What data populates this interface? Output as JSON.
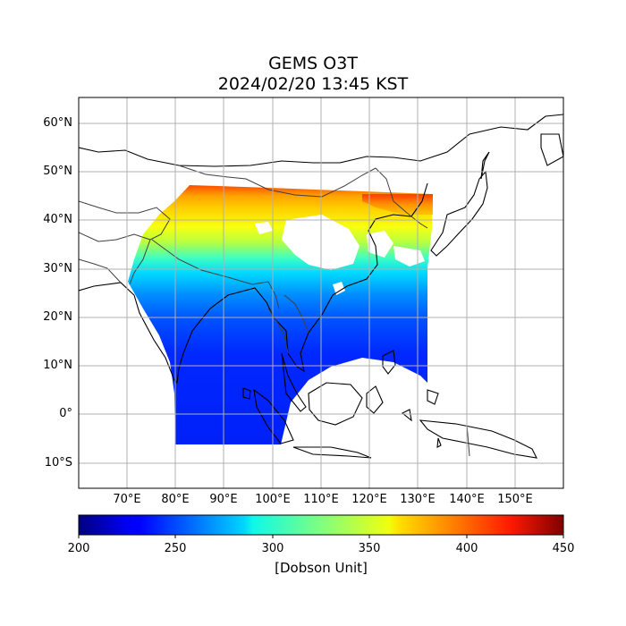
{
  "title_line1": "GEMS O3T",
  "title_line2": "2024/02/20 13:45 KST",
  "lat_labels": [
    "60°N",
    "50°N",
    "40°N",
    "30°N",
    "20°N",
    "10°N",
    "0°",
    "10°S"
  ],
  "lon_labels": [
    "70°E",
    "80°E",
    "90°E",
    "100°E",
    "110°E",
    "120°E",
    "130°E",
    "140°E",
    "150°E"
  ],
  "lat_values": [
    60,
    50,
    40,
    30,
    20,
    10,
    0,
    -10
  ],
  "lon_values": [
    70,
    80,
    90,
    100,
    110,
    120,
    130,
    140,
    150
  ],
  "map_extent": {
    "lon_min": 60,
    "lon_max": 160,
    "lat_min": -15,
    "lat_max": 65
  },
  "colorbar": {
    "min": 200,
    "max": 450,
    "tick_values": [
      200,
      250,
      300,
      350,
      400,
      450
    ],
    "tick_labels": [
      "200",
      "250",
      "300",
      "350",
      "400",
      "450"
    ],
    "label": "[Dobson Unit]",
    "colormap": "jet"
  },
  "colors": {
    "grid": "#b0b0b0",
    "coastline": "#000000",
    "border": "#404040"
  }
}
